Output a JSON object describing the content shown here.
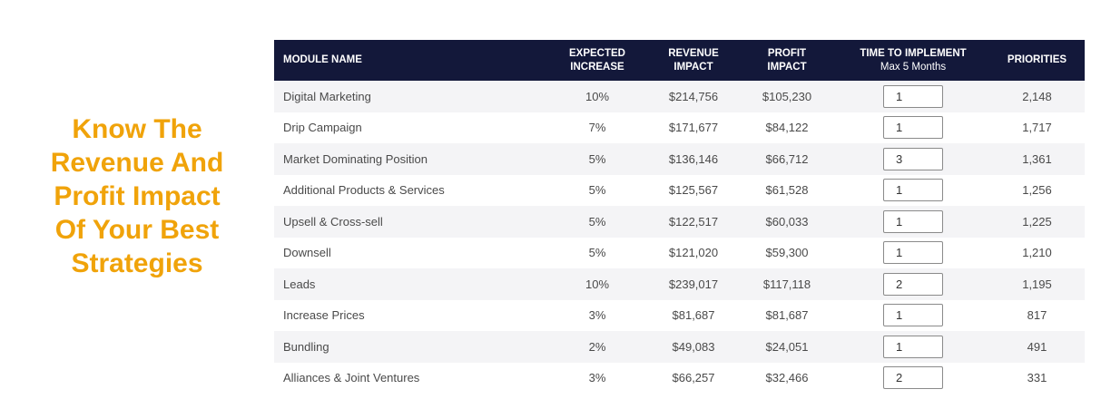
{
  "headline": {
    "lines": [
      "Know The",
      "Revenue And",
      "Profit Impact",
      "Of Your Best",
      "Strategies"
    ],
    "color": "#f0a30a"
  },
  "table": {
    "header_bg": "#13183a",
    "columns": {
      "module_name": "MODULE NAME",
      "expected_increase_1": "EXPECTED",
      "expected_increase_2": "INCREASE",
      "revenue_impact_1": "REVENUE",
      "revenue_impact_2": "IMPACT",
      "profit_impact_1": "PROFIT",
      "profit_impact_2": "IMPACT",
      "time_to_implement": "TIME TO IMPLEMENT",
      "time_to_implement_sub": "Max 5 Months",
      "priorities": "PRIORITIES"
    },
    "rows": [
      {
        "module": "Digital Marketing",
        "increase": "10%",
        "revenue": "$214,756",
        "profit": "$105,230",
        "time": "1",
        "priority": "2,148"
      },
      {
        "module": "Drip Campaign",
        "increase": "7%",
        "revenue": "$171,677",
        "profit": "$84,122",
        "time": "1",
        "priority": "1,717"
      },
      {
        "module": "Market Dominating Position",
        "increase": "5%",
        "revenue": "$136,146",
        "profit": "$66,712",
        "time": "3",
        "priority": "1,361"
      },
      {
        "module": "Additional Products & Services",
        "increase": "5%",
        "revenue": "$125,567",
        "profit": "$61,528",
        "time": "1",
        "priority": "1,256"
      },
      {
        "module": "Upsell & Cross-sell",
        "increase": "5%",
        "revenue": "$122,517",
        "profit": "$60,033",
        "time": "1",
        "priority": "1,225"
      },
      {
        "module": "Downsell",
        "increase": "5%",
        "revenue": "$121,020",
        "profit": "$59,300",
        "time": "1",
        "priority": "1,210"
      },
      {
        "module": "Leads",
        "increase": "10%",
        "revenue": "$239,017",
        "profit": "$117,118",
        "time": "2",
        "priority": "1,195"
      },
      {
        "module": "Increase Prices",
        "increase": "3%",
        "revenue": "$81,687",
        "profit": "$81,687",
        "time": "1",
        "priority": "817"
      },
      {
        "module": "Bundling",
        "increase": "2%",
        "revenue": "$49,083",
        "profit": "$24,051",
        "time": "1",
        "priority": "491"
      },
      {
        "module": "Alliances & Joint Ventures",
        "increase": "3%",
        "revenue": "$66,257",
        "profit": "$32,466",
        "time": "2",
        "priority": "331"
      }
    ]
  }
}
